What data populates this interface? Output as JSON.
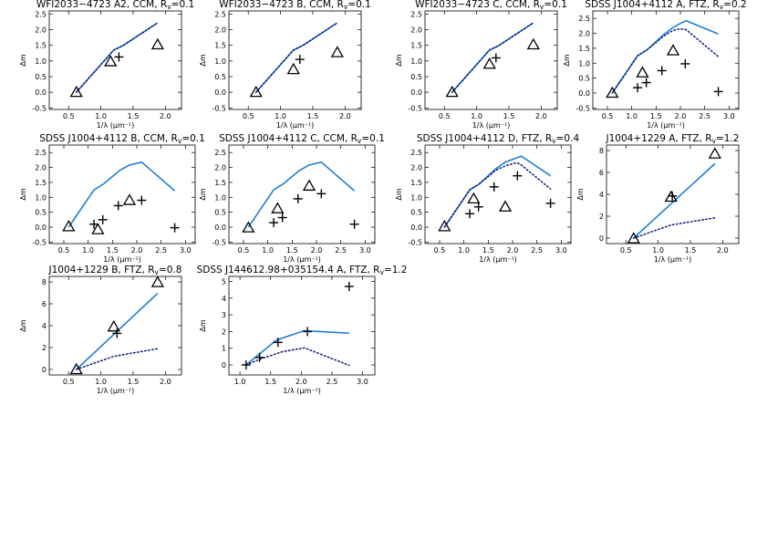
{
  "chart_data": [
    {
      "type": "line",
      "title": "WFI2033−4723 A2, CCM, R",
      "title_sub": "v",
      "title_tail": "=0.1",
      "xlabel": "1/λ (μm⁻¹)",
      "ylabel": "Δm",
      "xlim": [
        0.2,
        2.25
      ],
      "ylim": [
        -0.55,
        2.6
      ],
      "xticks": [
        "0.5",
        "1.0",
        "1.5",
        "2.0"
      ],
      "yticks": [
        "-0.5",
        "0.0",
        "0.5",
        "1.0",
        "1.5",
        "2.0",
        "2.5"
      ],
      "series": [
        {
          "style": "model-solid",
          "points": [
            [
              0.62,
              0.0
            ],
            [
              1.2,
              1.35
            ],
            [
              1.35,
              1.5
            ],
            [
              1.88,
              2.22
            ]
          ]
        },
        {
          "style": "model-dotted",
          "points": [
            [
              0.62,
              0.0
            ],
            [
              1.2,
              1.35
            ],
            [
              1.35,
              1.5
            ],
            [
              1.88,
              2.22
            ]
          ]
        },
        {
          "style": "triangle",
          "points": [
            [
              0.62,
              0.0
            ],
            [
              1.15,
              0.98
            ],
            [
              1.88,
              1.52
            ]
          ]
        },
        {
          "style": "cross",
          "points": [
            [
              1.28,
              1.13
            ]
          ]
        }
      ]
    },
    {
      "type": "line",
      "title": "WFI2033−4723 B, CCM, R",
      "title_sub": "v",
      "title_tail": "=0.1",
      "xlabel": "1/λ (μm⁻¹)",
      "ylabel": "Δm",
      "xlim": [
        0.2,
        2.25
      ],
      "ylim": [
        -0.55,
        2.6
      ],
      "xticks": [
        "0.5",
        "1.0",
        "1.5",
        "2.0"
      ],
      "yticks": [
        "-0.5",
        "0.0",
        "0.5",
        "1.0",
        "1.5",
        "2.0",
        "2.5"
      ],
      "series": [
        {
          "style": "model-solid",
          "points": [
            [
              0.62,
              0.0
            ],
            [
              1.2,
              1.35
            ],
            [
              1.35,
              1.5
            ],
            [
              1.88,
              2.22
            ]
          ]
        },
        {
          "style": "model-dotted",
          "points": [
            [
              0.62,
              0.0
            ],
            [
              1.2,
              1.35
            ],
            [
              1.35,
              1.5
            ],
            [
              1.88,
              2.22
            ]
          ]
        },
        {
          "style": "triangle",
          "points": [
            [
              0.62,
              0.0
            ],
            [
              1.2,
              0.73
            ],
            [
              1.88,
              1.27
            ]
          ]
        },
        {
          "style": "cross",
          "points": [
            [
              1.3,
              1.05
            ]
          ]
        }
      ]
    },
    {
      "type": "line",
      "title": "WFI2033−4723 C, CCM, R",
      "title_sub": "v",
      "title_tail": "=0.1",
      "xlabel": "1/λ (μm⁻¹)",
      "ylabel": "Δm",
      "xlim": [
        0.2,
        2.25
      ],
      "ylim": [
        -0.55,
        2.6
      ],
      "xticks": [
        "0.5",
        "1.0",
        "1.5",
        "2.0"
      ],
      "yticks": [
        "-0.5",
        "0.0",
        "0.5",
        "1.0",
        "1.5",
        "2.0",
        "2.5"
      ],
      "series": [
        {
          "style": "model-solid",
          "points": [
            [
              0.62,
              0.0
            ],
            [
              1.2,
              1.35
            ],
            [
              1.35,
              1.5
            ],
            [
              1.88,
              2.22
            ]
          ]
        },
        {
          "style": "model-dotted",
          "points": [
            [
              0.62,
              0.0
            ],
            [
              1.2,
              1.35
            ],
            [
              1.35,
              1.5
            ],
            [
              1.88,
              2.22
            ]
          ]
        },
        {
          "style": "triangle",
          "points": [
            [
              0.62,
              0.0
            ],
            [
              1.2,
              0.9
            ],
            [
              1.88,
              1.52
            ]
          ]
        },
        {
          "style": "cross",
          "points": [
            [
              1.3,
              1.1
            ]
          ]
        }
      ]
    },
    {
      "type": "line",
      "title": "SDSS J1004+4112 A, FTZ, R",
      "title_sub": "v",
      "title_tail": "=0.2",
      "xlabel": "1/λ (μm⁻¹)",
      "ylabel": "Δm",
      "xlim": [
        0.2,
        3.2
      ],
      "ylim": [
        -0.55,
        2.75
      ],
      "xticks": [
        "0.5",
        "1.0",
        "1.5",
        "2.0",
        "2.5",
        "3.0"
      ],
      "yticks": [
        "-0.5",
        "0.0",
        "0.5",
        "1.0",
        "1.5",
        "2.0",
        "2.5"
      ],
      "series": [
        {
          "style": "model-solid",
          "points": [
            [
              0.6,
              0.0
            ],
            [
              1.12,
              1.25
            ],
            [
              1.32,
              1.45
            ],
            [
              1.65,
              1.95
            ],
            [
              1.85,
              2.2
            ],
            [
              2.0,
              2.33
            ],
            [
              2.12,
              2.42
            ],
            [
              2.78,
              1.98
            ]
          ]
        },
        {
          "style": "model-dotted",
          "points": [
            [
              0.6,
              0.0
            ],
            [
              1.12,
              1.25
            ],
            [
              1.32,
              1.45
            ],
            [
              1.65,
              1.9
            ],
            [
              1.85,
              2.1
            ],
            [
              2.0,
              2.15
            ],
            [
              2.12,
              2.12
            ],
            [
              2.78,
              1.22
            ]
          ]
        },
        {
          "style": "triangle",
          "points": [
            [
              0.6,
              0.0
            ],
            [
              1.22,
              0.68
            ],
            [
              1.85,
              1.42
            ]
          ]
        },
        {
          "style": "cross",
          "points": [
            [
              1.12,
              0.18
            ],
            [
              1.3,
              0.35
            ],
            [
              1.62,
              0.75
            ],
            [
              2.1,
              0.98
            ],
            [
              2.78,
              0.05
            ]
          ]
        }
      ]
    },
    {
      "type": "line",
      "title": "SDSS J1004+4112 B, CCM, R",
      "title_sub": "v",
      "title_tail": "=0.1",
      "xlabel": "1/λ (μm⁻¹)",
      "ylabel": "Δm",
      "xlim": [
        0.2,
        3.2
      ],
      "ylim": [
        -0.55,
        2.75
      ],
      "xticks": [
        "0.5",
        "1.0",
        "1.5",
        "2.0",
        "2.5",
        "3.0"
      ],
      "yticks": [
        "-0.5",
        "0.0",
        "0.5",
        "1.0",
        "1.5",
        "2.0",
        "2.5"
      ],
      "series": [
        {
          "style": "model-solid",
          "points": [
            [
              0.6,
              0.0
            ],
            [
              1.12,
              1.25
            ],
            [
              1.32,
              1.45
            ],
            [
              1.65,
              1.9
            ],
            [
              1.85,
              2.08
            ],
            [
              2.1,
              2.18
            ],
            [
              2.78,
              1.22
            ]
          ]
        },
        {
          "style": "triangle",
          "points": [
            [
              0.6,
              0.02
            ],
            [
              1.2,
              -0.08
            ],
            [
              1.85,
              0.9
            ]
          ]
        },
        {
          "style": "cross",
          "points": [
            [
              1.12,
              0.1
            ],
            [
              1.3,
              0.25
            ],
            [
              1.62,
              0.72
            ],
            [
              2.1,
              0.9
            ],
            [
              2.78,
              -0.02
            ]
          ]
        }
      ]
    },
    {
      "type": "line",
      "title": "SDSS J1004+4112 C, CCM, R",
      "title_sub": "v",
      "title_tail": "=0.1",
      "xlabel": "1/λ (μm⁻¹)",
      "ylabel": "Δm",
      "xlim": [
        0.2,
        3.2
      ],
      "ylim": [
        -0.55,
        2.75
      ],
      "xticks": [
        "0.5",
        "1.0",
        "1.5",
        "2.0",
        "2.5",
        "3.0"
      ],
      "yticks": [
        "-0.5",
        "0.0",
        "0.5",
        "1.0",
        "1.5",
        "2.0",
        "2.5"
      ],
      "series": [
        {
          "style": "model-solid",
          "points": [
            [
              0.6,
              0.0
            ],
            [
              1.12,
              1.25
            ],
            [
              1.32,
              1.45
            ],
            [
              1.65,
              1.9
            ],
            [
              1.85,
              2.08
            ],
            [
              2.1,
              2.18
            ],
            [
              2.78,
              1.22
            ]
          ]
        },
        {
          "style": "triangle",
          "points": [
            [
              0.6,
              -0.02
            ],
            [
              1.2,
              0.62
            ],
            [
              1.85,
              1.38
            ]
          ]
        },
        {
          "style": "cross",
          "points": [
            [
              1.12,
              0.15
            ],
            [
              1.3,
              0.32
            ],
            [
              1.62,
              0.95
            ],
            [
              2.1,
              1.12
            ],
            [
              2.78,
              0.1
            ]
          ]
        }
      ]
    },
    {
      "type": "line",
      "title": "SDSS J1004+4112 D, FTZ, R",
      "title_sub": "v",
      "title_tail": "=0.4",
      "xlabel": "1/λ (μm⁻¹)",
      "ylabel": "Δm",
      "xlim": [
        0.2,
        3.2
      ],
      "ylim": [
        -0.55,
        2.75
      ],
      "xticks": [
        "0.5",
        "1.0",
        "1.5",
        "2.0",
        "2.5",
        "3.0"
      ],
      "yticks": [
        "-0.5",
        "0.0",
        "0.5",
        "1.0",
        "1.5",
        "2.0",
        "2.5"
      ],
      "series": [
        {
          "style": "model-solid",
          "points": [
            [
              0.6,
              0.0
            ],
            [
              1.12,
              1.25
            ],
            [
              1.32,
              1.45
            ],
            [
              1.65,
              1.95
            ],
            [
              1.85,
              2.18
            ],
            [
              2.1,
              2.33
            ],
            [
              2.18,
              2.38
            ],
            [
              2.78,
              1.72
            ]
          ]
        },
        {
          "style": "model-dotted",
          "points": [
            [
              0.6,
              0.0
            ],
            [
              1.12,
              1.25
            ],
            [
              1.32,
              1.45
            ],
            [
              1.65,
              1.9
            ],
            [
              1.85,
              2.05
            ],
            [
              2.05,
              2.15
            ],
            [
              2.15,
              2.12
            ],
            [
              2.78,
              1.28
            ]
          ]
        },
        {
          "style": "triangle",
          "points": [
            [
              0.6,
              0.02
            ],
            [
              1.2,
              0.95
            ],
            [
              1.85,
              0.68
            ]
          ]
        },
        {
          "style": "cross",
          "points": [
            [
              1.12,
              0.45
            ],
            [
              1.3,
              0.68
            ],
            [
              1.62,
              1.35
            ],
            [
              2.1,
              1.72
            ],
            [
              2.78,
              0.8
            ]
          ]
        }
      ]
    },
    {
      "type": "line",
      "title": "J1004+1229 A, FTZ, R",
      "title_sub": "v",
      "title_tail": "=1.2",
      "xlabel": "1/λ (μm⁻¹)",
      "ylabel": "Δm",
      "xlim": [
        0.2,
        2.25
      ],
      "ylim": [
        -0.5,
        8.5
      ],
      "xticks": [
        "0.5",
        "1.0",
        "1.5",
        "2.0"
      ],
      "yticks": [
        "0",
        "2",
        "4",
        "6",
        "8"
      ],
      "series": [
        {
          "style": "model-solid",
          "points": [
            [
              0.62,
              0.0
            ],
            [
              1.88,
              6.8
            ]
          ]
        },
        {
          "style": "model-dotted",
          "points": [
            [
              0.62,
              0.0
            ],
            [
              1.2,
              1.2
            ],
            [
              1.88,
              1.85
            ]
          ]
        },
        {
          "style": "triangle",
          "points": [
            [
              0.62,
              -0.05
            ],
            [
              1.2,
              3.75
            ],
            [
              1.88,
              7.7
            ]
          ]
        },
        {
          "style": "cross",
          "points": [
            [
              1.22,
              3.85
            ]
          ]
        }
      ]
    },
    {
      "type": "line",
      "title": "J1004+1229 B, FTZ, R",
      "title_sub": "v",
      "title_tail": "=0.8",
      "xlabel": "1/λ (μm⁻¹)",
      "ylabel": "Δm",
      "xlim": [
        0.2,
        2.25
      ],
      "ylim": [
        -0.5,
        8.5
      ],
      "xticks": [
        "0.5",
        "1.0",
        "1.5",
        "2.0"
      ],
      "yticks": [
        "0",
        "2",
        "4",
        "6",
        "8"
      ],
      "series": [
        {
          "style": "model-solid",
          "points": [
            [
              0.62,
              0.0
            ],
            [
              1.88,
              6.95
            ]
          ]
        },
        {
          "style": "model-dotted",
          "points": [
            [
              0.62,
              0.0
            ],
            [
              1.2,
              1.2
            ],
            [
              1.88,
              1.9
            ]
          ]
        },
        {
          "style": "triangle",
          "points": [
            [
              0.62,
              0.0
            ],
            [
              1.2,
              3.9
            ],
            [
              1.88,
              7.95
            ]
          ]
        },
        {
          "style": "cross",
          "points": [
            [
              1.25,
              3.3
            ]
          ]
        }
      ]
    },
    {
      "type": "line",
      "title": "SDSS J144612.98+035154.4 A, FTZ, R",
      "title_sub": "v",
      "title_tail": "=1.2",
      "xlabel": "1/λ (μm⁻¹)",
      "ylabel": "Δm",
      "xlim": [
        0.82,
        3.2
      ],
      "ylim": [
        -0.6,
        5.3
      ],
      "xticks": [
        "1.0",
        "1.5",
        "2.0",
        "2.5",
        "3.0"
      ],
      "yticks": [
        "0",
        "1",
        "2",
        "3",
        "4",
        "5"
      ],
      "series": [
        {
          "style": "model-solid",
          "points": [
            [
              1.1,
              0.0
            ],
            [
              1.6,
              1.5
            ],
            [
              2.05,
              2.05
            ],
            [
              2.78,
              1.9
            ]
          ]
        },
        {
          "style": "model-dotted",
          "points": [
            [
              1.1,
              0.0
            ],
            [
              1.35,
              0.38
            ],
            [
              1.7,
              0.8
            ],
            [
              2.05,
              1.02
            ],
            [
              2.78,
              -0.02
            ]
          ]
        },
        {
          "style": "cross",
          "points": [
            [
              1.1,
              0.0
            ],
            [
              1.32,
              0.45
            ],
            [
              1.62,
              1.35
            ],
            [
              2.1,
              2.0
            ],
            [
              2.78,
              4.7
            ]
          ]
        }
      ]
    }
  ]
}
